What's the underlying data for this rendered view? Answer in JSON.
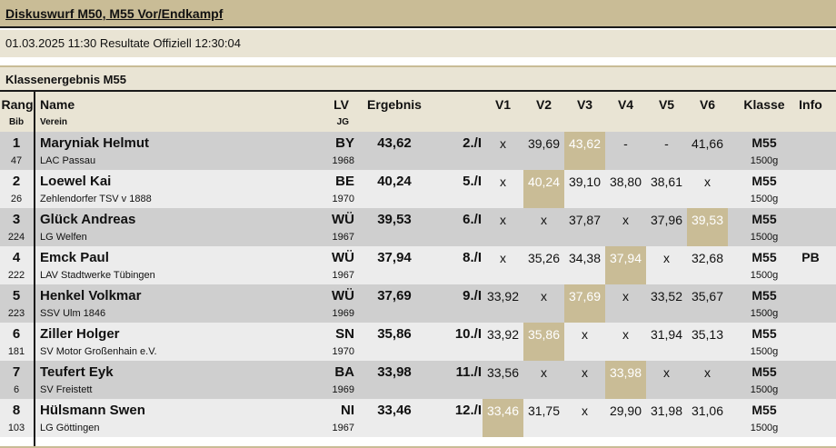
{
  "title": "Diskuswurf M50, M55 Vor/Endkampf",
  "status_line": "01.03.2025 11:30 Resultate Offiziell 12:30:04",
  "section_title": "Klassenergebnis M55",
  "headers": {
    "rang": "Rang",
    "bib": "Bib",
    "name": "Name",
    "verein": "Verein",
    "lv": "LV",
    "jg": "JG",
    "ergebnis": "Ergebnis",
    "v1": "V1",
    "v2": "V2",
    "v3": "V3",
    "v4": "V4",
    "v5": "V5",
    "v6": "V6",
    "klasse": "Klasse",
    "info": "Info"
  },
  "colors": {
    "accent": "#c9bc96",
    "row_odd": "#cfcfcf",
    "row_even": "#ececec",
    "header_bg": "#e9e4d4"
  },
  "rows": [
    {
      "rank": "1",
      "bib": "47",
      "name": "Maryniak Helmut",
      "club": "LAC Passau",
      "lv": "BY",
      "yob": "1968",
      "result": "43,62",
      "place": "2./I",
      "attempts": [
        "x",
        "39,69",
        "43,62",
        "-",
        "-",
        "41,66"
      ],
      "best": 2,
      "cls": "M55",
      "weight": "1500g",
      "info": ""
    },
    {
      "rank": "2",
      "bib": "26",
      "name": "Loewel Kai",
      "club": "Zehlendorfer TSV v 1888",
      "lv": "BE",
      "yob": "1970",
      "result": "40,24",
      "place": "5./I",
      "attempts": [
        "x",
        "40,24",
        "39,10",
        "38,80",
        "38,61",
        "x"
      ],
      "best": 1,
      "cls": "M55",
      "weight": "1500g",
      "info": ""
    },
    {
      "rank": "3",
      "bib": "224",
      "name": "Glück Andreas",
      "club": "LG Welfen",
      "lv": "WÜ",
      "yob": "1967",
      "result": "39,53",
      "place": "6./I",
      "attempts": [
        "x",
        "x",
        "37,87",
        "x",
        "37,96",
        "39,53"
      ],
      "best": 5,
      "cls": "M55",
      "weight": "1500g",
      "info": ""
    },
    {
      "rank": "4",
      "bib": "222",
      "name": "Emck Paul",
      "club": "LAV Stadtwerke Tübingen",
      "lv": "WÜ",
      "yob": "1967",
      "result": "37,94",
      "place": "8./I",
      "attempts": [
        "x",
        "35,26",
        "34,38",
        "37,94",
        "x",
        "32,68"
      ],
      "best": 3,
      "cls": "M55",
      "weight": "1500g",
      "info": "PB"
    },
    {
      "rank": "5",
      "bib": "223",
      "name": "Henkel Volkmar",
      "club": "SSV Ulm 1846",
      "lv": "WÜ",
      "yob": "1969",
      "result": "37,69",
      "place": "9./I",
      "attempts": [
        "33,92",
        "x",
        "37,69",
        "x",
        "33,52",
        "35,67"
      ],
      "best": 2,
      "cls": "M55",
      "weight": "1500g",
      "info": ""
    },
    {
      "rank": "6",
      "bib": "181",
      "name": "Ziller Holger",
      "club": "SV Motor Großenhain e.V.",
      "lv": "SN",
      "yob": "1970",
      "result": "35,86",
      "place": "10./I",
      "attempts": [
        "33,92",
        "35,86",
        "x",
        "x",
        "31,94",
        "35,13"
      ],
      "best": 1,
      "cls": "M55",
      "weight": "1500g",
      "info": ""
    },
    {
      "rank": "7",
      "bib": "6",
      "name": "Teufert Eyk",
      "club": "SV Freistett",
      "lv": "BA",
      "yob": "1969",
      "result": "33,98",
      "place": "11./I",
      "attempts": [
        "33,56",
        "x",
        "x",
        "33,98",
        "x",
        "x"
      ],
      "best": 3,
      "cls": "M55",
      "weight": "1500g",
      "info": ""
    },
    {
      "rank": "8",
      "bib": "103",
      "name": "Hülsmann Swen",
      "club": "LG Göttingen",
      "lv": "NI",
      "yob": "1967",
      "result": "33,46",
      "place": "12./I",
      "attempts": [
        "33,46",
        "31,75",
        "x",
        "29,90",
        "31,98",
        "31,06"
      ],
      "best": 0,
      "cls": "M55",
      "weight": "1500g",
      "info": ""
    }
  ]
}
